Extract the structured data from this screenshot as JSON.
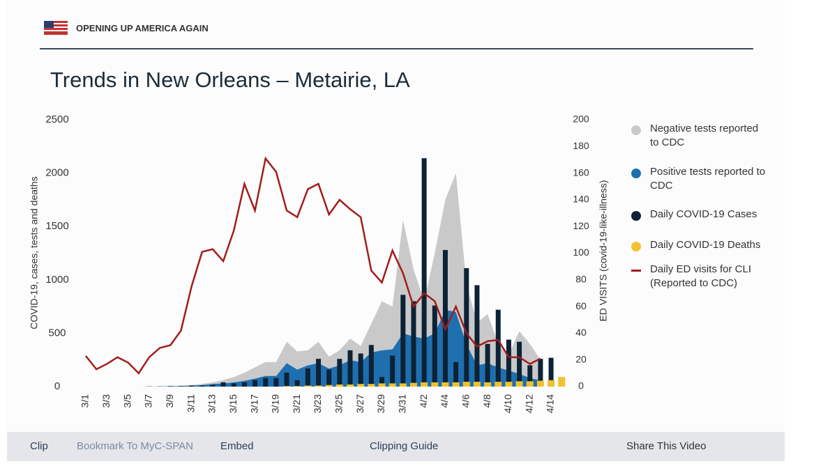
{
  "header": {
    "title": "OPENING UP AMERICA AGAIN"
  },
  "chart_data": {
    "type": "combo",
    "title": "Trends in New Orleans – Metairie, LA",
    "y_label": "COVID-19, cases, tests and deaths",
    "y2_label": "ED VISITS (covid-19-like-illness)",
    "categories": [
      "3/1",
      null,
      "3/3",
      null,
      "3/5",
      null,
      "3/7",
      null,
      "3/9",
      null,
      "3/11",
      null,
      "3/13",
      null,
      "3/15",
      null,
      "3/17",
      null,
      "3/19",
      null,
      "3/21",
      null,
      "3/23",
      null,
      "3/25",
      null,
      "3/27",
      null,
      "3/29",
      null,
      "3/31",
      null,
      "4/2",
      null,
      "4/4",
      null,
      "4/6",
      null,
      "4/8",
      null,
      "4/10",
      null,
      "4/12",
      null,
      "4/14",
      null
    ],
    "ylim": [
      0,
      2500
    ],
    "yticks": [
      0,
      500,
      1000,
      1500,
      2000,
      2500
    ],
    "y2lim": [
      0,
      200
    ],
    "y2ticks": [
      0,
      20,
      40,
      60,
      80,
      100,
      120,
      140,
      160,
      180,
      200
    ],
    "series": [
      {
        "name": "Negative tests reported to CDC",
        "type": "area",
        "stack_on": 1,
        "color": "#c9c9c9",
        "values": [
          0,
          0,
          0,
          0,
          0,
          0,
          1,
          2,
          3,
          5,
          5,
          10,
          15,
          30,
          50,
          75,
          105,
          130,
          130,
          200,
          170,
          140,
          200,
          110,
          140,
          200,
          150,
          270,
          460,
          400,
          1060,
          630,
          350,
          750,
          1030,
          1300,
          560,
          400,
          460,
          220,
          150,
          400,
          320,
          190,
          null,
          null
        ]
      },
      {
        "name": "Positive tests reported to CDC",
        "type": "area",
        "color": "#1f6fae",
        "values": [
          0,
          0,
          0,
          0,
          0,
          0,
          1,
          2,
          3,
          5,
          10,
          15,
          25,
          30,
          40,
          55,
          75,
          100,
          100,
          220,
          160,
          200,
          220,
          170,
          200,
          250,
          230,
          320,
          340,
          350,
          500,
          470,
          450,
          500,
          720,
          700,
          400,
          200,
          220,
          180,
          150,
          120,
          80,
          60,
          null,
          null
        ]
      },
      {
        "name": "Daily COVID-19 Cases",
        "type": "bar",
        "color": "#0c2236",
        "values": [
          0,
          0,
          0,
          0,
          0,
          0,
          2,
          2,
          5,
          5,
          10,
          10,
          15,
          40,
          30,
          40,
          60,
          80,
          80,
          130,
          60,
          170,
          260,
          160,
          260,
          340,
          310,
          390,
          90,
          290,
          860,
          800,
          2140,
          760,
          1280,
          230,
          1110,
          950,
          400,
          720,
          440,
          420,
          200,
          260,
          270,
          null
        ]
      },
      {
        "name": "Daily COVID-19 Deaths",
        "type": "bar",
        "color": "#f0c230",
        "values": [
          0,
          0,
          0,
          0,
          0,
          0,
          0,
          0,
          0,
          0,
          0,
          0,
          0,
          0,
          0,
          0,
          0,
          0,
          0,
          5,
          5,
          10,
          10,
          15,
          20,
          20,
          25,
          25,
          30,
          30,
          30,
          35,
          40,
          40,
          40,
          40,
          45,
          45,
          40,
          45,
          45,
          50,
          50,
          55,
          60,
          90
        ]
      },
      {
        "name": "Daily ED visits for CLI (Reported to CDC)",
        "type": "line",
        "axis": "y2",
        "color": "#a31c1c",
        "values": [
          23,
          13,
          17,
          22,
          18,
          10,
          22,
          29,
          31,
          42,
          75,
          101,
          103,
          94,
          117,
          152,
          132,
          171,
          161,
          132,
          127,
          148,
          152,
          129,
          140,
          133,
          127,
          87,
          78,
          102,
          85,
          60,
          70,
          64,
          43,
          60,
          40,
          30,
          34,
          35,
          22,
          22,
          17,
          21,
          null,
          null
        ]
      }
    ]
  },
  "toolbar": {
    "clip": "Clip",
    "bookmark": "Bookmark To MyC-SPAN",
    "embed": "Embed",
    "guide": "Clipping Guide",
    "share": "Share This Video"
  }
}
